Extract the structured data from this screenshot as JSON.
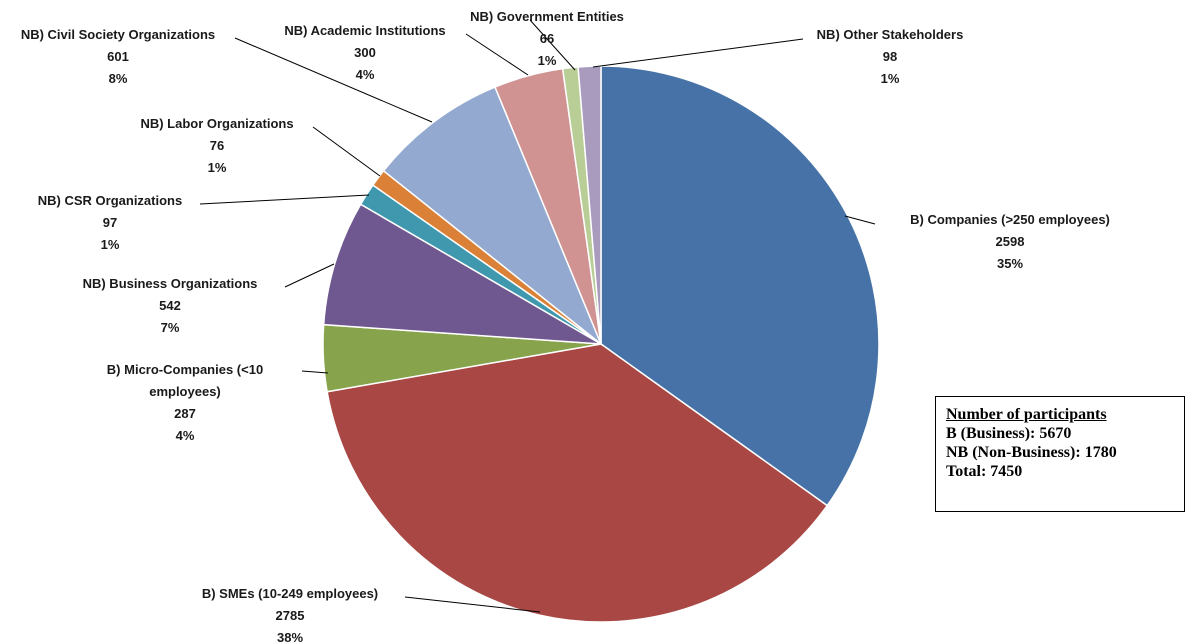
{
  "chart_data": {
    "type": "pie",
    "total": 7450,
    "slices": [
      {
        "label": "B) Companies (>250 employees)",
        "value": 2598,
        "percent": "35%",
        "color": "#4672A7"
      },
      {
        "label": "B) SMEs (10-249 employees)",
        "value": 2785,
        "percent": "38%",
        "color": "#A84743"
      },
      {
        "label": "B) Micro-Companies (<10 employees)",
        "value": 287,
        "percent": "4%",
        "color": "#87A44D"
      },
      {
        "label": "NB) Business Organizations",
        "value": 542,
        "percent": "7%",
        "color": "#6F5790"
      },
      {
        "label": "NB) CSR Organizations",
        "value": 97,
        "percent": "1%",
        "color": "#3F98AE"
      },
      {
        "label": "NB) Labor Organizations",
        "value": 76,
        "percent": "1%",
        "color": "#DA8137"
      },
      {
        "label": "NB) Civil Society Organizations",
        "value": 601,
        "percent": "8%",
        "color": "#93A9CF"
      },
      {
        "label": "NB) Academic Institutions",
        "value": 300,
        "percent": "4%",
        "color": "#D09392"
      },
      {
        "label": "NB) Government Entities",
        "value": 66,
        "percent": "1%",
        "color": "#B9CD96"
      },
      {
        "label": "NB) Other Stakeholders",
        "value": 98,
        "percent": "1%",
        "color": "#A99BBD"
      }
    ]
  },
  "summary": {
    "title": "Number of participants",
    "business": "B (Business): 5670",
    "non_business": "NB (Non-Business): 1780",
    "total": "Total: 7450"
  }
}
